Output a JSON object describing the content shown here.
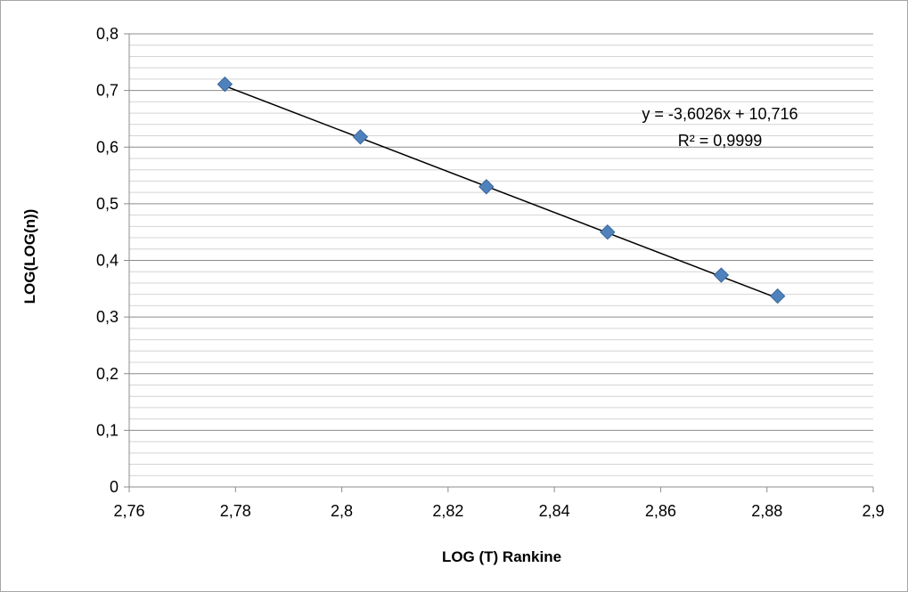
{
  "chart_data": {
    "type": "scatter",
    "xlabel": "LOG (T) Rankine",
    "ylabel": "LOG(LOG(n))",
    "xlim": [
      2.76,
      2.9
    ],
    "ylim": [
      0,
      0.8
    ],
    "x_ticks": [
      "2,76",
      "2,78",
      "2,8",
      "2,82",
      "2,84",
      "2,86",
      "2,88",
      "2,9"
    ],
    "y_ticks": [
      "0",
      "0,1",
      "0,2",
      "0,3",
      "0,4",
      "0,5",
      "0,6",
      "0,7",
      "0,8"
    ],
    "x_tick_values": [
      2.76,
      2.78,
      2.8,
      2.82,
      2.84,
      2.86,
      2.88,
      2.9
    ],
    "y_tick_values": [
      0,
      0.1,
      0.2,
      0.3,
      0.4,
      0.5,
      0.6,
      0.7,
      0.8
    ],
    "grid": "horizontal major and minor",
    "series": [
      {
        "x": [
          2.778,
          2.8035,
          2.8272,
          2.85,
          2.8714,
          2.882
        ],
        "y": [
          0.711,
          0.618,
          0.53,
          0.45,
          0.374,
          0.337
        ],
        "color": "#4f81bd",
        "marker": "diamond"
      }
    ],
    "trendline": {
      "type": "linear",
      "slope": -3.6026,
      "intercept": 10.716,
      "x_range": [
        2.778,
        2.882
      ],
      "color": "#000000",
      "equation_label": "y = -3,6026x + 10,716",
      "r2_label": "R² = 0,9999"
    }
  }
}
